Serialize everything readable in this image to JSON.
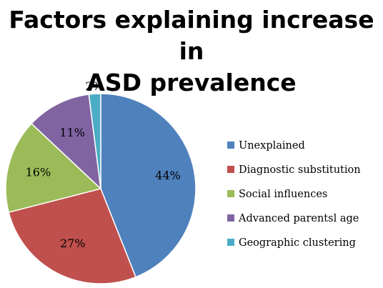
{
  "chart_data": {
    "type": "pie",
    "title_lines": [
      "Factors explaining increase in",
      "ASD prevalence"
    ],
    "slices": [
      {
        "name": "Unexplained",
        "value": 44,
        "label": "44%",
        "color": "#4f81bd"
      },
      {
        "name": "Diagnostic substitution",
        "value": 27,
        "label": "27%",
        "color": "#c0504d"
      },
      {
        "name": "Social influences",
        "value": 16,
        "label": "16%",
        "color": "#9bbb59"
      },
      {
        "name": "Advanced parentsl age",
        "value": 11,
        "label": "11%",
        "color": "#8064a2"
      },
      {
        "name": "Geographic clustering",
        "value": 2,
        "label": "2%",
        "color": "#4bacc6"
      }
    ],
    "legend_position": "right"
  }
}
